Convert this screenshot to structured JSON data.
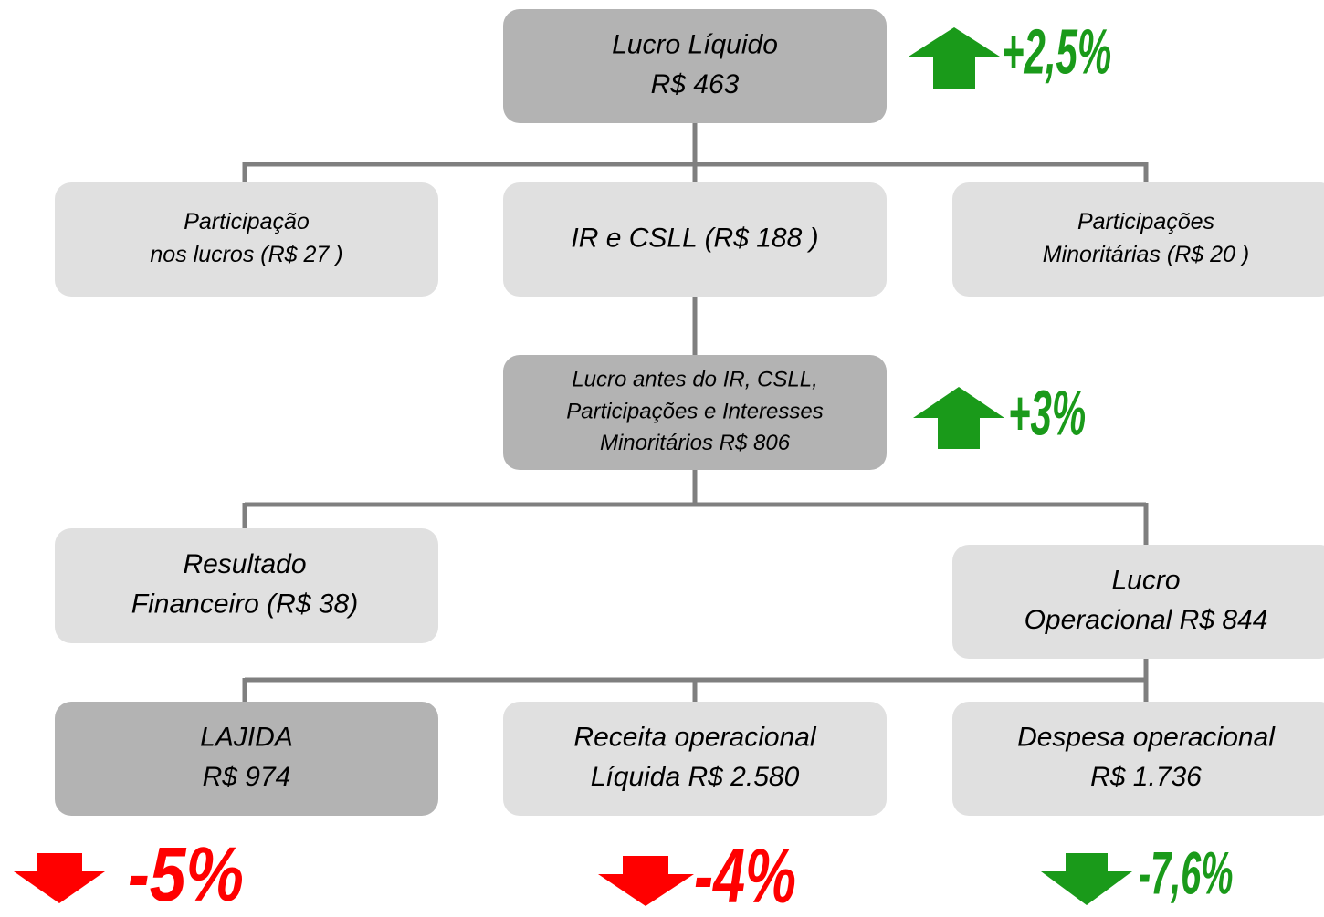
{
  "nodes": [
    {
      "lines": [
        "Lucro Líquido",
        "R$ 463"
      ]
    },
    {
      "lines": [
        "Participação",
        "nos lucros (R$ 27 )"
      ]
    },
    {
      "lines": [
        "IR e CSLL (R$ 188 )"
      ]
    },
    {
      "lines": [
        "Participações",
        "Minoritárias (R$ 20  )"
      ]
    },
    {
      "lines": [
        "Lucro antes do IR, CSLL,",
        "Participações e Interesses",
        "Minoritários R$ 806"
      ]
    },
    {
      "lines": [
        "Resultado",
        "Financeiro (R$ 38)"
      ]
    },
    {
      "lines": [
        "Lucro",
        "Operacional R$ 844"
      ]
    },
    {
      "lines": [
        "LAJIDA",
        "R$ 974"
      ]
    },
    {
      "lines": [
        "Receita operacional",
        "Líquida R$ 2.580"
      ]
    },
    {
      "lines": [
        "Despesa operacional",
        "R$ 1.736"
      ]
    }
  ],
  "badges": [
    {
      "text": "+2,5%"
    },
    {
      "text": "+3%"
    },
    {
      "text": "-5%"
    },
    {
      "text": "-4%"
    },
    {
      "text": "-7,6%"
    }
  ]
}
